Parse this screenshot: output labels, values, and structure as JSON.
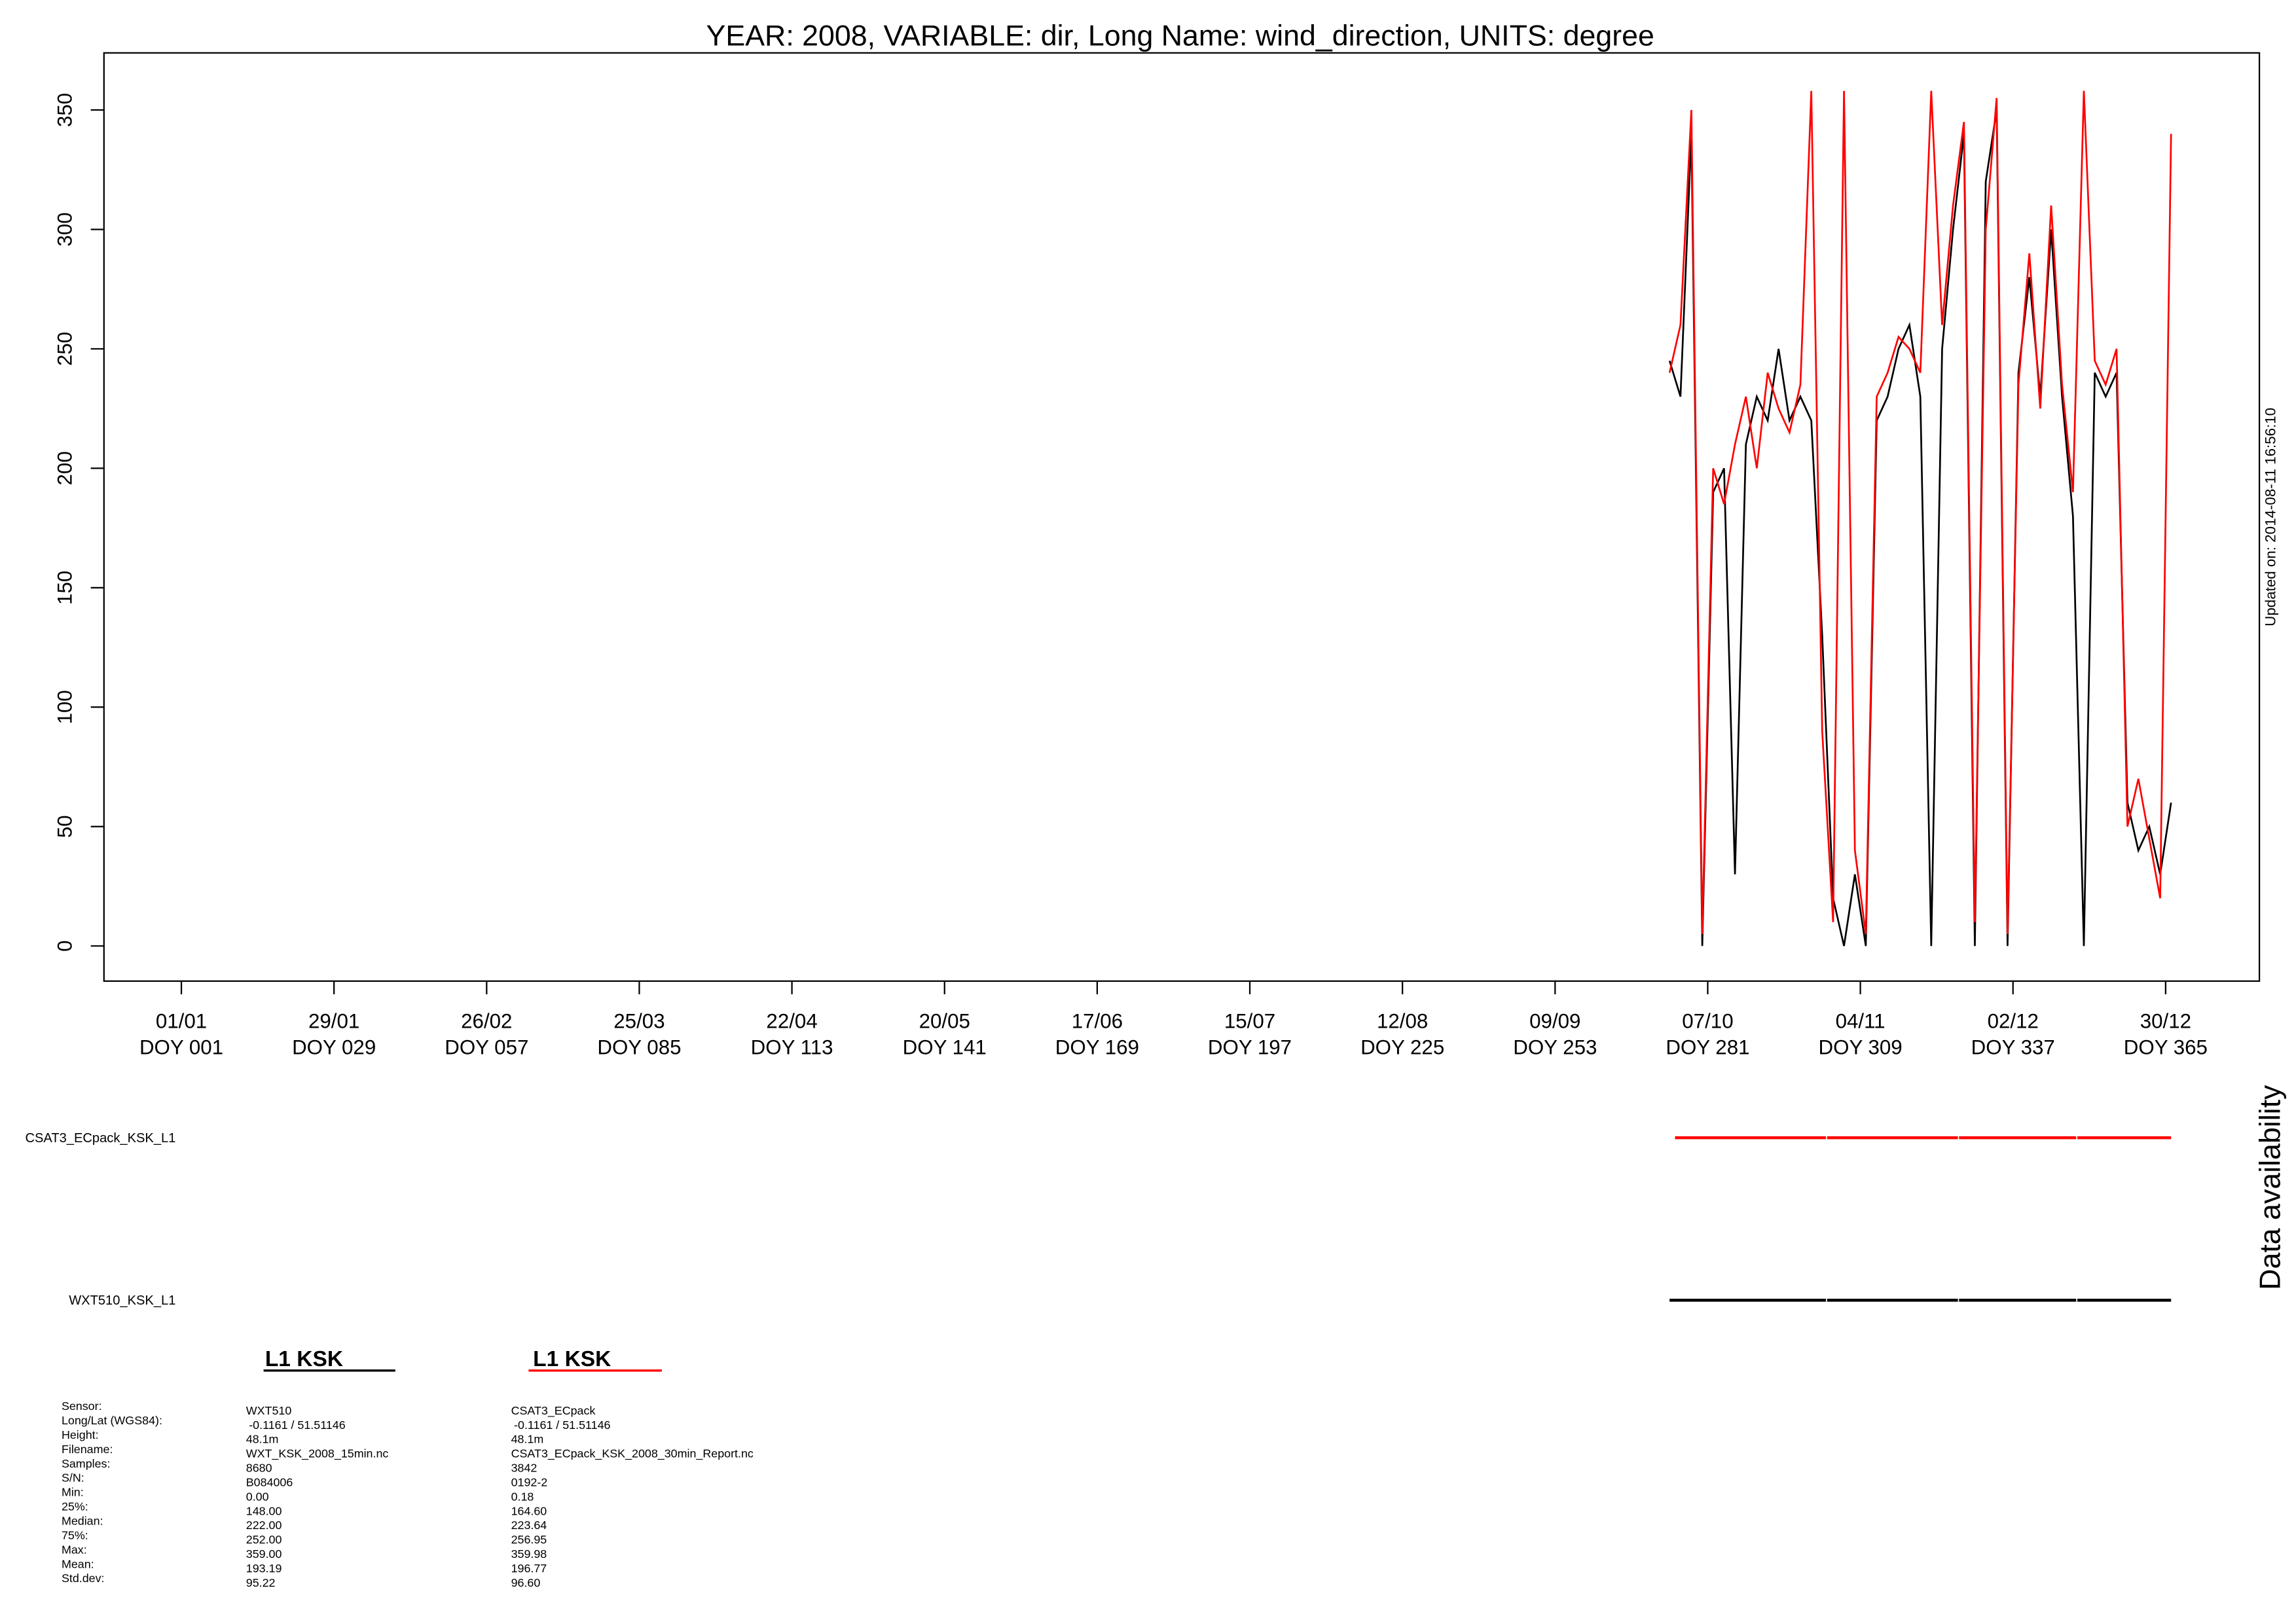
{
  "chart_data": {
    "type": "line",
    "title": "YEAR: 2008, VARIABLE: dir, Long Name: wind_direction, UNITS: degree",
    "side_note": "Updated on: 2014-08-11 16:56:10",
    "x": [
      274,
      276,
      278,
      280,
      282,
      284,
      286,
      288,
      290,
      292,
      294,
      296,
      298,
      300,
      302,
      304,
      306,
      308,
      310,
      312,
      314,
      316,
      318,
      320,
      322,
      324,
      326,
      328,
      330,
      332,
      334,
      336,
      338,
      340,
      342,
      344,
      346,
      348,
      350,
      352,
      354,
      356,
      358,
      360,
      362,
      364,
      366
    ],
    "series": [
      {
        "name": "WXT510_KSK_L1",
        "color": "#000000",
        "values": [
          245,
          230,
          340,
          0,
          190,
          200,
          30,
          210,
          230,
          220,
          250,
          220,
          230,
          220,
          130,
          20,
          0,
          30,
          0,
          220,
          230,
          250,
          260,
          230,
          0,
          250,
          300,
          340,
          0,
          320,
          350,
          0,
          240,
          280,
          230,
          300,
          230,
          180,
          0,
          240,
          230,
          240,
          60,
          40,
          50,
          30,
          60
        ]
      },
      {
        "name": "CSAT3_ECpack_KSK_L1",
        "color": "#ff0000",
        "values": [
          240,
          260,
          350,
          5,
          200,
          185,
          210,
          230,
          200,
          240,
          225,
          215,
          235,
          358,
          90,
          10,
          358,
          40,
          5,
          230,
          240,
          255,
          250,
          240,
          358,
          260,
          310,
          345,
          10,
          300,
          355,
          5,
          235,
          290,
          225,
          310,
          235,
          190,
          358,
          245,
          235,
          250,
          50,
          70,
          45,
          20,
          340
        ]
      }
    ],
    "xlim": [
      -13.2,
      382.2
    ],
    "ylim": [
      -14.7,
      373.9
    ],
    "yticks": [
      0,
      50,
      100,
      150,
      200,
      250,
      300,
      350
    ],
    "xticks": [
      {
        "value": 1,
        "label": "01/01"
      },
      {
        "value": 29,
        "label": "29/01"
      },
      {
        "value": 57,
        "label": "26/02"
      },
      {
        "value": 85,
        "label": "25/03"
      },
      {
        "value": 113,
        "label": "22/04"
      },
      {
        "value": 141,
        "label": "20/05"
      },
      {
        "value": 169,
        "label": "17/06"
      },
      {
        "value": 197,
        "label": "15/07"
      },
      {
        "value": 225,
        "label": "12/08"
      },
      {
        "value": 253,
        "label": "09/09"
      },
      {
        "value": 281,
        "label": "07/10"
      },
      {
        "value": 309,
        "label": "04/11"
      },
      {
        "value": 337,
        "label": "02/12"
      },
      {
        "value": 365,
        "label": "30/12"
      }
    ],
    "xtick_doy_labels": [
      "DOY 001",
      "DOY 029",
      "DOY 057",
      "DOY 085",
      "DOY 113",
      "DOY 141",
      "DOY 169",
      "DOY 197",
      "DOY 225",
      "DOY 253",
      "DOY 281",
      "DOY 309",
      "DOY 337",
      "DOY 365"
    ],
    "availability": {
      "title": "Data availability",
      "rows": [
        {
          "name": "CSAT3_ECpack_KSK_L1",
          "color": "#ff0000",
          "segments": [
            [
              275,
              302.7
            ],
            [
              302.9,
              326.9
            ],
            [
              327.1,
              348.6
            ],
            [
              348.8,
              366
            ]
          ]
        },
        {
          "name": "WXT510_KSK_L1",
          "color": "#000000",
          "segments": [
            [
              274,
              302.7
            ],
            [
              302.9,
              326.9
            ],
            [
              327.1,
              348.6
            ],
            [
              348.8,
              366
            ]
          ]
        }
      ]
    },
    "stats": {
      "labels": [
        "Sensor:",
        "Long/Lat (WGS84):",
        "Height:",
        "Filename:",
        "Samples:",
        "S/N:",
        "Min:",
        "25%:",
        "Median:",
        "75%:",
        "Max:",
        "Mean:",
        "Std.dev:"
      ],
      "columns": [
        {
          "heading": "L1 KSK",
          "color": "#000000",
          "values": [
            "WXT510",
            "-0.1161 / 51.51146",
            "48.1m",
            "WXT_KSK_2008_15min.nc",
            "8680",
            "B084006",
            "0.00",
            "148.00",
            "222.00",
            "252.00",
            "359.00",
            "193.19",
            "95.22"
          ]
        },
        {
          "heading": "L1 KSK",
          "color": "#ff0000",
          "values": [
            "CSAT3_ECpack",
            "-0.1161 / 51.51146",
            "48.1m",
            "CSAT3_ECpack_KSK_2008_30min_Report.nc",
            "3842",
            "0192-2",
            "0.18",
            "164.60",
            "223.64",
            "256.95",
            "359.98",
            "196.77",
            "96.60"
          ]
        }
      ]
    }
  }
}
